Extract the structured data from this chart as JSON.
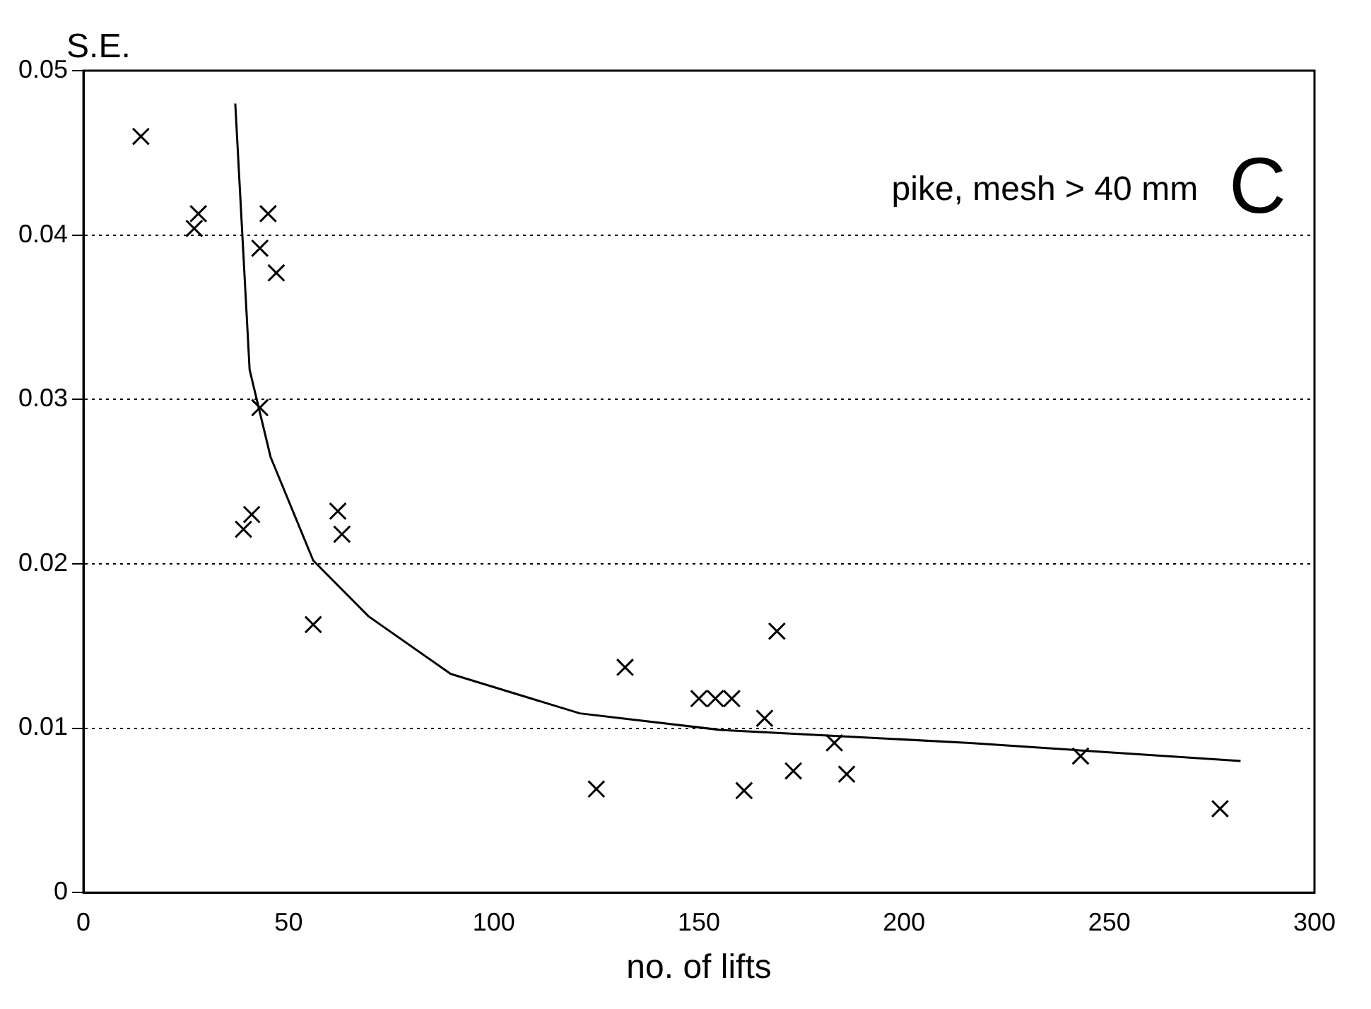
{
  "chart_data": {
    "type": "scatter",
    "xlabel": "no. of lifts",
    "ylabel": "S.E.",
    "annotations": [
      "pike, mesh > 40 mm",
      "C"
    ],
    "xlim": [
      0,
      300
    ],
    "xticks": [
      0,
      50,
      100,
      150,
      200,
      250,
      300
    ],
    "ylim": [
      0,
      0.05
    ],
    "yticks": [
      0,
      0.01,
      0.02,
      0.03,
      0.04,
      0.05
    ],
    "grid": "y",
    "legend": false,
    "series": [
      {
        "type": "scatter",
        "marker": "cross",
        "color": "#000000",
        "x": [
          14,
          27,
          28,
          45,
          43,
          47,
          43,
          39,
          41,
          62,
          63,
          56,
          125,
          132,
          150,
          154,
          158,
          161,
          166,
          169,
          173,
          183,
          186,
          243,
          277
        ],
        "values": [
          0.046,
          0.0404,
          0.0413,
          0.0413,
          0.0392,
          0.0377,
          0.0295,
          0.0221,
          0.023,
          0.0232,
          0.0218,
          0.0163,
          0.0063,
          0.0137,
          0.0118,
          0.0118,
          0.0118,
          0.0062,
          0.0106,
          0.0159,
          0.0074,
          0.0091,
          0.0072,
          0.0083,
          0.0051
        ]
      },
      {
        "type": "line",
        "marker": "none",
        "line_style": "solid",
        "color": "#000000",
        "x": [
          37,
          40.5,
          45.6,
          56,
          69.5,
          89.5,
          121,
          155,
          216,
          282
        ],
        "values": [
          0.048,
          0.0318,
          0.0265,
          0.0202,
          0.0168,
          0.0133,
          0.0109,
          0.0099,
          0.0091,
          0.008
        ]
      }
    ]
  }
}
